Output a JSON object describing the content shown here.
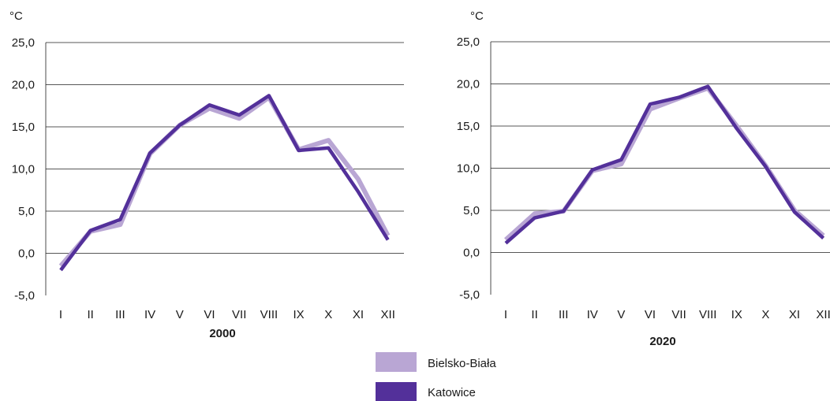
{
  "legend": [
    {
      "label": "Bielsko-Biała",
      "color": "#b9a6d4"
    },
    {
      "label": "Katowice",
      "color": "#53309a"
    }
  ],
  "chart_data": [
    {
      "type": "line",
      "title": "2000",
      "unit_label": "°C",
      "categories": [
        "I",
        "II",
        "III",
        "IV",
        "V",
        "VI",
        "VII",
        "VIII",
        "IX",
        "X",
        "XI",
        "XII"
      ],
      "ylim": [
        -5,
        25
      ],
      "yticks": [
        "-5,0",
        "0,0",
        "5,0",
        "10,0",
        "15,0",
        "20,0",
        "25,0"
      ],
      "grid": true,
      "series": [
        {
          "name": "Bielsko-Biała",
          "color": "#b9a6d4",
          "values": [
            -1.5,
            2.6,
            3.4,
            11.8,
            15.2,
            17.2,
            16.0,
            18.5,
            12.3,
            13.4,
            8.8,
            2.1
          ]
        },
        {
          "name": "Katowice",
          "color": "#53309a",
          "values": [
            -2.0,
            2.7,
            4.0,
            11.9,
            15.2,
            17.6,
            16.4,
            18.7,
            12.2,
            12.5,
            7.3,
            1.6
          ]
        }
      ]
    },
    {
      "type": "line",
      "title": "2020",
      "unit_label": "°C",
      "categories": [
        "I",
        "II",
        "III",
        "IV",
        "V",
        "VI",
        "VII",
        "VIII",
        "IX",
        "X",
        "XI",
        "XII"
      ],
      "ylim": [
        -5,
        25
      ],
      "yticks": [
        "-5,0",
        "0,0",
        "5,0",
        "10,0",
        "15,0",
        "20,0",
        "25,0"
      ],
      "grid": true,
      "series": [
        {
          "name": "Bielsko-Biała",
          "color": "#b9a6d4",
          "values": [
            1.5,
            4.6,
            4.9,
            9.7,
            10.5,
            17.0,
            18.3,
            19.5,
            15.0,
            10.3,
            5.0,
            2.0
          ]
        },
        {
          "name": "Katowice",
          "color": "#53309a",
          "values": [
            1.1,
            4.1,
            4.9,
            9.8,
            11.0,
            17.6,
            18.4,
            19.7,
            14.7,
            10.2,
            4.8,
            1.7
          ]
        }
      ]
    }
  ]
}
